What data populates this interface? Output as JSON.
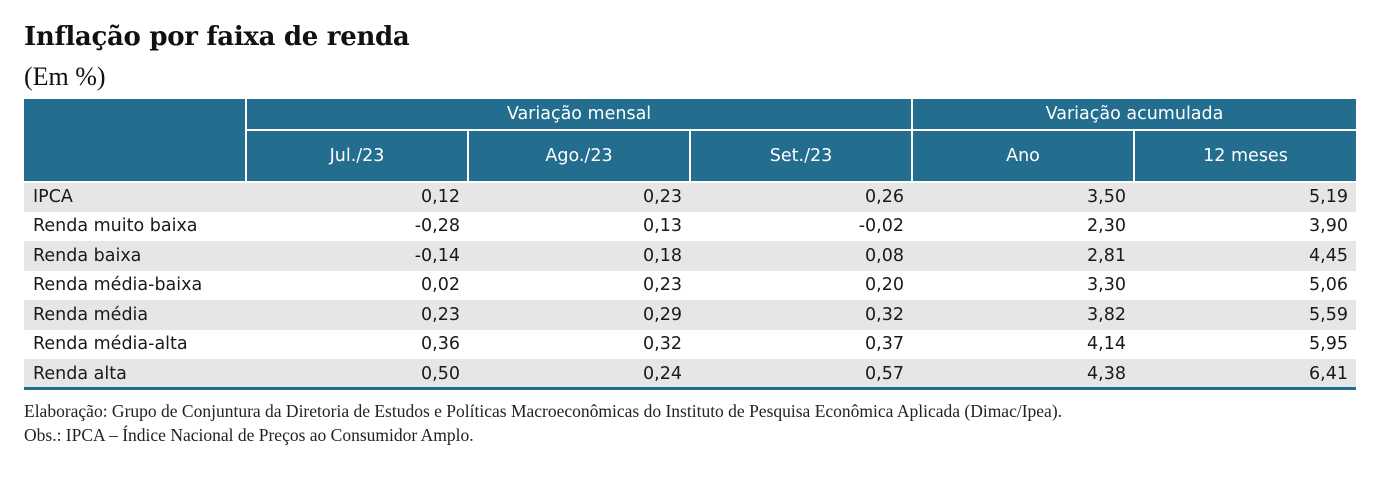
{
  "title": "Inflação por faixa de renda",
  "subtitle": "(Em %)",
  "chart_data": {
    "type": "table",
    "title": "Inflação por faixa de renda",
    "subtitle": "(Em %)",
    "column_groups": [
      {
        "label": "Variação mensal",
        "span": 3
      },
      {
        "label": "Variação acumulada",
        "span": 2
      }
    ],
    "columns": [
      "Jul./23",
      "Ago./23",
      "Set./23",
      "Ano",
      "12 meses"
    ],
    "rows": [
      {
        "label": "IPCA",
        "values": [
          "0,12",
          "0,23",
          "0,26",
          "3,50",
          "5,19"
        ]
      },
      {
        "label": "Renda muito baixa",
        "values": [
          "-0,28",
          "0,13",
          "-0,02",
          "2,30",
          "3,90"
        ]
      },
      {
        "label": "Renda baixa",
        "values": [
          "-0,14",
          "0,18",
          "0,08",
          "2,81",
          "4,45"
        ]
      },
      {
        "label": "Renda média-baixa",
        "values": [
          "0,02",
          "0,23",
          "0,20",
          "3,30",
          "5,06"
        ]
      },
      {
        "label": "Renda média",
        "values": [
          "0,23",
          "0,29",
          "0,32",
          "3,82",
          "5,59"
        ]
      },
      {
        "label": "Renda média-alta",
        "values": [
          "0,36",
          "0,32",
          "0,37",
          "4,14",
          "5,95"
        ]
      },
      {
        "label": "Renda alta",
        "values": [
          "0,50",
          "0,24",
          "0,57",
          "4,38",
          "6,41"
        ]
      }
    ]
  },
  "notes": {
    "source": "Elaboração: Grupo de Conjuntura da Diretoria de Estudos e Políticas Macroeconômicas do Instituto de Pesquisa Econômica Aplicada (Dimac/Ipea).",
    "obs": "Obs.: IPCA – Índice Nacional de Preços ao Consumidor Amplo."
  },
  "colors": {
    "header_bg": "#236e8f",
    "header_text": "#ffffff",
    "stripe": "#e6e6e6",
    "rule": "#236e8f"
  }
}
